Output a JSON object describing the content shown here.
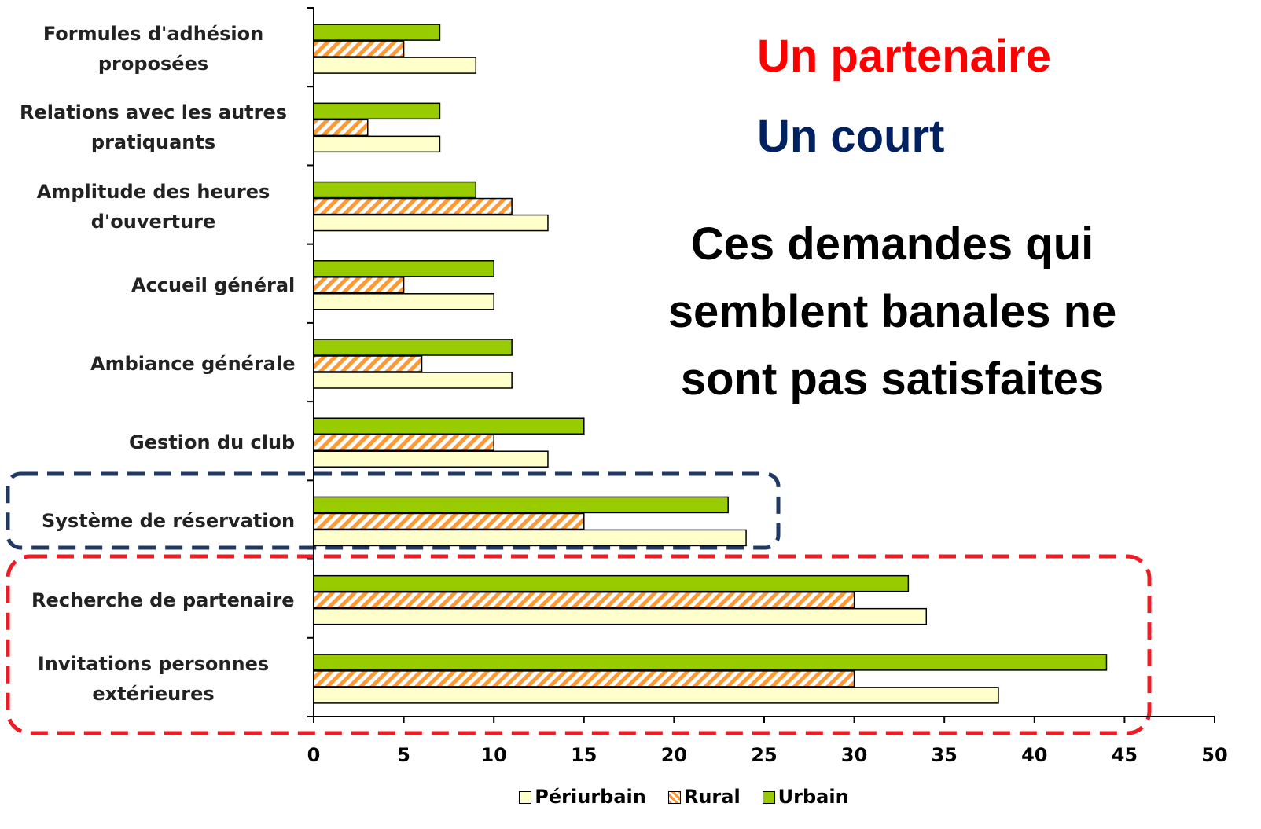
{
  "chart_data": {
    "type": "hbar",
    "categories": [
      "Formules d'adhésion proposées",
      "Relations avec les autres pratiquants",
      "Amplitude des heures d'ouverture",
      "Accueil général",
      "Ambiance générale",
      "Gestion du club",
      "Système de réservation",
      "Recherche de partenaire",
      "Invitations personnes extérieures"
    ],
    "series": [
      {
        "name": "Périurbain",
        "color": "#ffffcc",
        "values": [
          9,
          7,
          13,
          10,
          11,
          13,
          24,
          34,
          38
        ]
      },
      {
        "name": "Rural",
        "color": "#ff9933",
        "hatch": true,
        "values": [
          5,
          3,
          11,
          5,
          6,
          10,
          15,
          30,
          30
        ]
      },
      {
        "name": "Urbain",
        "color": "#99cc00",
        "values": [
          7,
          7,
          9,
          10,
          11,
          15,
          23,
          33,
          44
        ]
      }
    ],
    "xlim": [
      0,
      50
    ],
    "xticks": [
      0,
      5,
      10,
      15,
      20,
      25,
      30,
      35,
      40,
      45,
      50
    ],
    "annotations": [
      {
        "text": "Un partenaire",
        "color": "#ff0000"
      },
      {
        "text": "Un court",
        "color": "#002060"
      },
      {
        "text": "Ces demandes qui semblent banales ne sont pas satisfaites",
        "color": "#000000"
      }
    ]
  }
}
